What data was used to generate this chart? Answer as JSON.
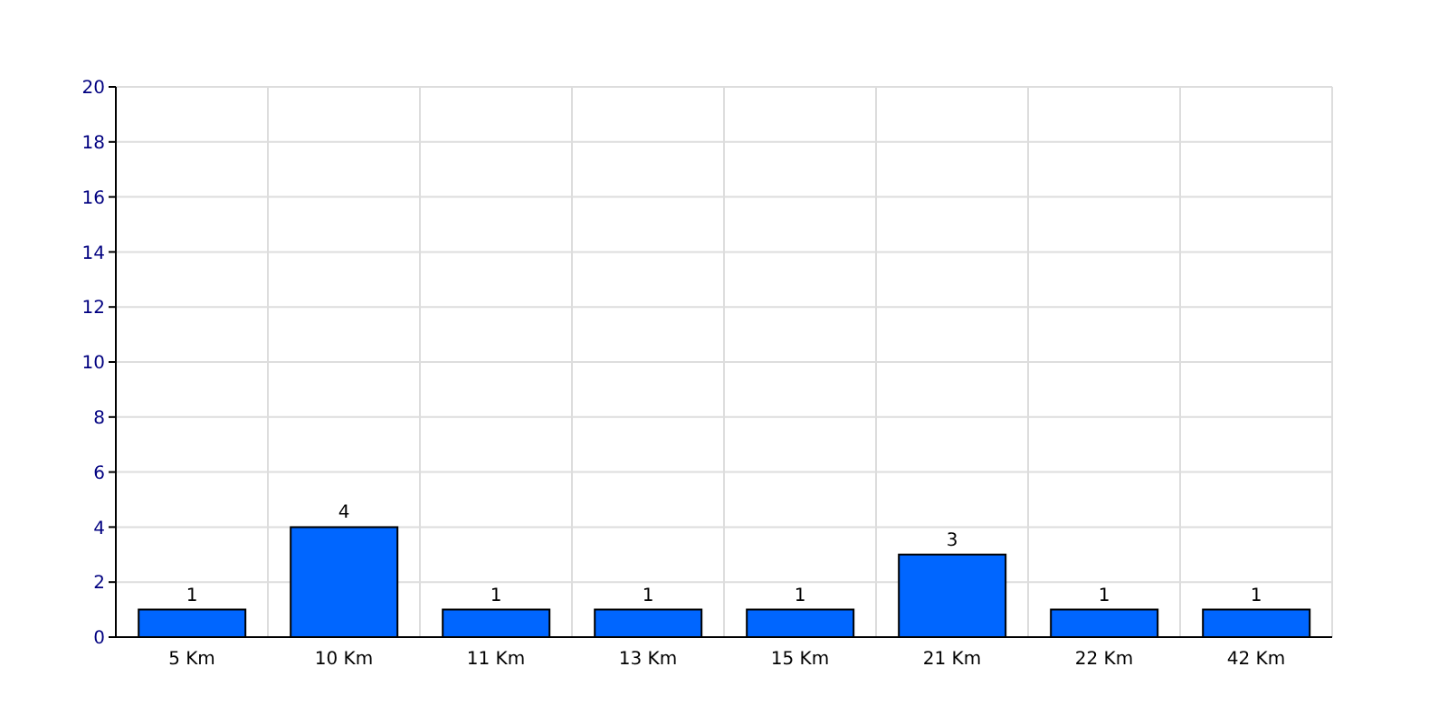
{
  "chart_data": {
    "type": "bar",
    "categories": [
      "5 Km",
      "10 Km",
      "11 Km",
      "13 Km",
      "15 Km",
      "21 Km",
      "22 Km",
      "42 Km"
    ],
    "values": [
      1,
      4,
      1,
      1,
      1,
      3,
      1,
      1
    ],
    "color": "#0066ff",
    "ylim": [
      0,
      20
    ],
    "yticks": [
      0,
      2,
      4,
      6,
      8,
      10,
      12,
      14,
      16,
      18,
      20
    ],
    "grid": true,
    "data_labels": true
  }
}
